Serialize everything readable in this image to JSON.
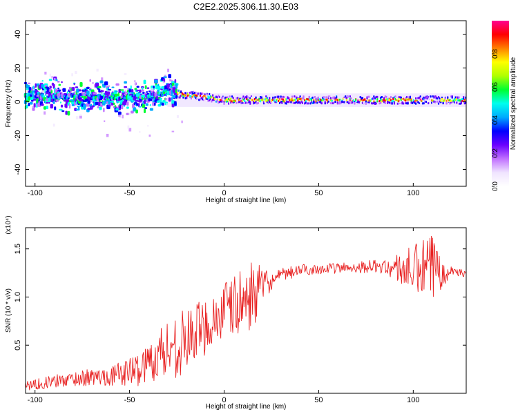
{
  "title": "C2E2.2025.306.11.30.E03",
  "colors": {
    "snr_line": "#e82020",
    "spectrogram_palette": [
      "#ffffff",
      "#f0e4ff",
      "#c070ff",
      "#6a00ff",
      "#0000ff",
      "#00aaff",
      "#00ffee",
      "#00ff30",
      "#b0ff00",
      "#ffff00",
      "#ff8000",
      "#ff0000",
      "#ff0090"
    ]
  },
  "chart_data": [
    {
      "type": "heatmap",
      "name": "spectrogram",
      "xlabel": "Height of straight line (km)",
      "ylabel": "Frequency (Hz)",
      "xlim": [
        -105,
        128
      ],
      "ylim": [
        -50,
        48
      ],
      "xticks": [
        -100,
        -50,
        0,
        50,
        100
      ],
      "yticks": [
        -40,
        -20,
        0,
        20,
        40
      ],
      "colorbar": {
        "label": "Normalized spectral amplitude",
        "range": [
          0,
          1
        ],
        "ticks": [
          "0.0",
          "0.2",
          "0.4",
          "0.6",
          "0.8"
        ]
      },
      "band_center_hz": [
        {
          "x": -100,
          "f": 4
        },
        {
          "x": -80,
          "f": 3
        },
        {
          "x": -60,
          "f": 2
        },
        {
          "x": -40,
          "f": 3
        },
        {
          "x": -30,
          "f": 6
        },
        {
          "x": -20,
          "f": 4
        },
        {
          "x": -10,
          "f": 3
        },
        {
          "x": 0,
          "f": 1
        },
        {
          "x": 50,
          "f": 1
        },
        {
          "x": 128,
          "f": 1
        }
      ]
    },
    {
      "type": "line",
      "name": "snr",
      "xlabel": "Height of straight line (km)",
      "ylabel": "SNR (10 * v/v)",
      "y_multiplier": "(x10⁴)",
      "xlim": [
        -105,
        128
      ],
      "ylim": [
        0,
        1.72
      ],
      "xticks": [
        -100,
        -50,
        0,
        50,
        100
      ],
      "yticks": [
        "0.5",
        "1.0",
        "1.5"
      ],
      "trend": [
        {
          "x": -105,
          "y": 0.08
        },
        {
          "x": -80,
          "y": 0.15
        },
        {
          "x": -60,
          "y": 0.18
        },
        {
          "x": -45,
          "y": 0.25
        },
        {
          "x": -35,
          "y": 0.4
        },
        {
          "x": -20,
          "y": 0.55
        },
        {
          "x": -10,
          "y": 0.7
        },
        {
          "x": 0,
          "y": 0.85
        },
        {
          "x": 10,
          "y": 0.95
        },
        {
          "x": 20,
          "y": 1.1
        },
        {
          "x": 30,
          "y": 1.22
        },
        {
          "x": 40,
          "y": 1.28
        },
        {
          "x": 60,
          "y": 1.3
        },
        {
          "x": 80,
          "y": 1.32
        },
        {
          "x": 100,
          "y": 1.28
        },
        {
          "x": 115,
          "y": 1.3
        },
        {
          "x": 128,
          "y": 1.24
        }
      ],
      "noise_amplitude": [
        {
          "x": -105,
          "a": 0.05
        },
        {
          "x": -60,
          "a": 0.1
        },
        {
          "x": -40,
          "a": 0.2
        },
        {
          "x": -30,
          "a": 0.35
        },
        {
          "x": -10,
          "a": 0.3
        },
        {
          "x": 15,
          "a": 0.35
        },
        {
          "x": 25,
          "a": 0.08
        },
        {
          "x": 50,
          "a": 0.05
        },
        {
          "x": 85,
          "a": 0.07
        },
        {
          "x": 95,
          "a": 0.2
        },
        {
          "x": 110,
          "a": 0.38
        },
        {
          "x": 120,
          "a": 0.05
        },
        {
          "x": 128,
          "a": 0.03
        }
      ]
    }
  ]
}
